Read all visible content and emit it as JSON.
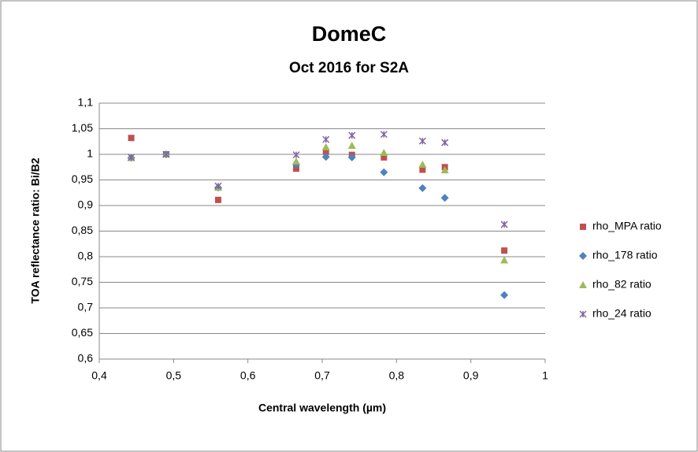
{
  "chart_data": {
    "type": "scatter",
    "title": "DomeC",
    "subtitle": "Oct 2016 for S2A",
    "x_label": "Central wavelength (µm)",
    "y_label": "TOA reflectance ratio: Bi/B2",
    "xlim": [
      0.4,
      1.0
    ],
    "xticks": [
      {
        "value": 0.4,
        "label": "0,4"
      },
      {
        "value": 0.5,
        "label": "0,5"
      },
      {
        "value": 0.6,
        "label": "0,6"
      },
      {
        "value": 0.7,
        "label": "0,7"
      },
      {
        "value": 0.8,
        "label": "0,8"
      },
      {
        "value": 0.9,
        "label": "0,9"
      },
      1
    ],
    "ylim": [
      0.6,
      1.1
    ],
    "yticks": [
      {
        "value": 0.6,
        "label": "0,6"
      },
      {
        "value": 0.65,
        "label": "0,65"
      },
      {
        "value": 0.7,
        "label": "0,7"
      },
      {
        "value": 0.75,
        "label": "0,75"
      },
      {
        "value": 0.8,
        "label": "0,8"
      },
      {
        "value": 0.85,
        "label": "0,85"
      },
      {
        "value": 0.9,
        "label": "0,9"
      },
      {
        "value": 0.95,
        "label": "0,95"
      },
      1,
      {
        "value": 1.05,
        "label": "1,05"
      },
      {
        "value": 1.1,
        "label": "1,1"
      }
    ],
    "grid": true,
    "legend": "right",
    "x": [
      0.443,
      0.49,
      0.56,
      0.665,
      0.705,
      0.74,
      0.783,
      0.835,
      0.865,
      0.945
    ],
    "series": [
      {
        "name": "rho_MPA ratio",
        "color": "#c0504d",
        "marker": "square",
        "values": [
          1.032,
          1.0,
          0.911,
          0.972,
          1.005,
          0.999,
          0.994,
          0.97,
          0.975,
          0.812
        ]
      },
      {
        "name": "rho_178 ratio",
        "color": "#4f81bd",
        "marker": "diamond",
        "values": [
          0.993,
          1.0,
          0.935,
          0.98,
          0.995,
          0.994,
          0.965,
          0.934,
          0.915,
          0.725
        ]
      },
      {
        "name": "rho_82 ratio",
        "color": "#9bbb59",
        "marker": "triangle",
        "values": [
          0.993,
          1.0,
          0.935,
          0.986,
          1.014,
          1.017,
          1.003,
          0.98,
          0.969,
          0.793
        ]
      },
      {
        "name": "rho_24 ratio",
        "color": "#8064a2",
        "marker": "star",
        "values": [
          0.994,
          1.0,
          0.938,
          0.999,
          1.029,
          1.037,
          1.039,
          1.026,
          1.023,
          0.863
        ]
      }
    ]
  }
}
